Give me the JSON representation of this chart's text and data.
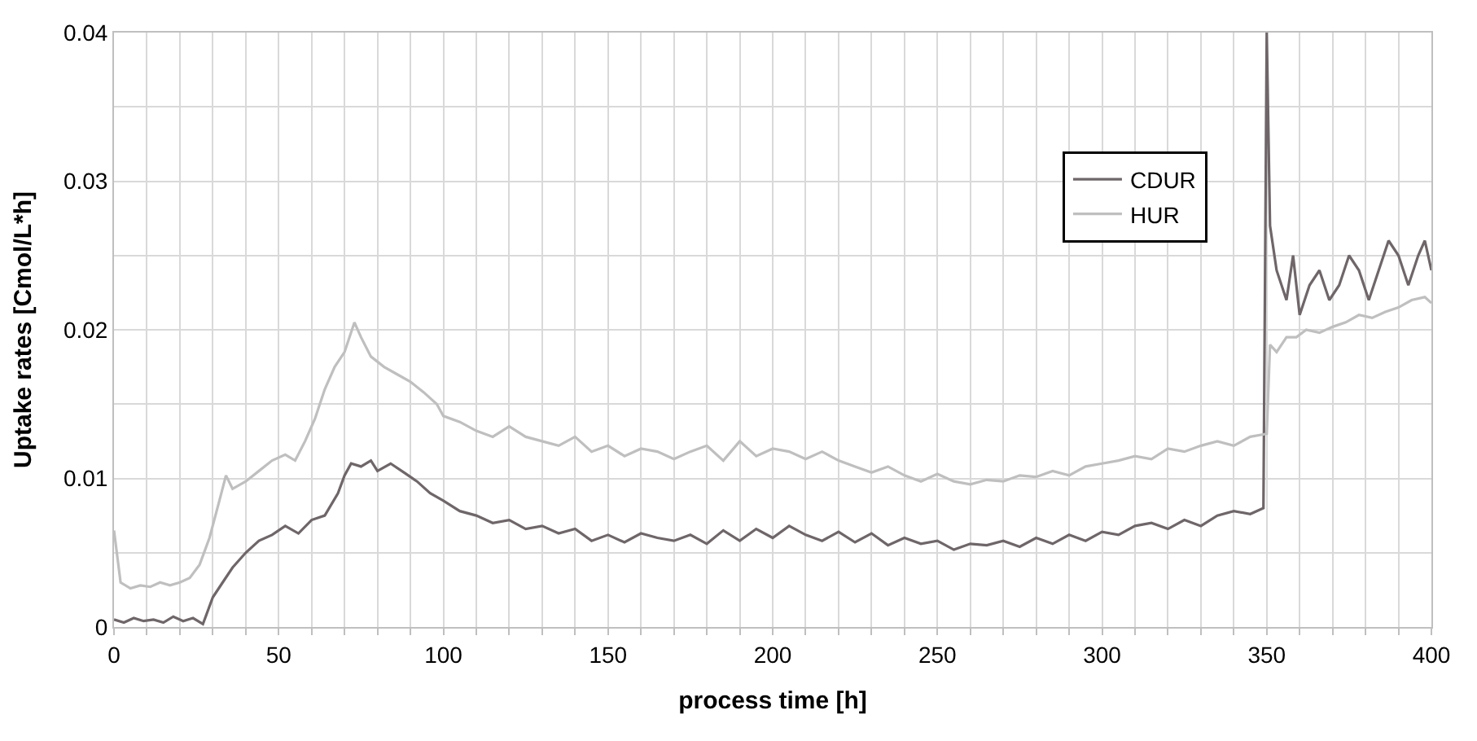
{
  "chart_data": {
    "type": "line",
    "xlabel": "process time [h]",
    "ylabel": "Uptake rates [Cmol/L*h]",
    "xlim": [
      0,
      400
    ],
    "ylim": [
      0,
      0.04
    ],
    "xticks": [
      0,
      {
        "value": 10,
        "label": null
      },
      {
        "value": 20,
        "label": null
      },
      {
        "value": 30,
        "label": null
      },
      {
        "value": 40,
        "label": null
      },
      50,
      {
        "value": 60,
        "label": null
      },
      {
        "value": 70,
        "label": null
      },
      {
        "value": 80,
        "label": null
      },
      {
        "value": 90,
        "label": null
      },
      100,
      {
        "value": 110,
        "label": null
      },
      {
        "value": 120,
        "label": null
      },
      {
        "value": 130,
        "label": null
      },
      {
        "value": 140,
        "label": null
      },
      150,
      {
        "value": 160,
        "label": null
      },
      {
        "value": 170,
        "label": null
      },
      {
        "value": 180,
        "label": null
      },
      {
        "value": 190,
        "label": null
      },
      200,
      {
        "value": 210,
        "label": null
      },
      {
        "value": 220,
        "label": null
      },
      {
        "value": 230,
        "label": null
      },
      {
        "value": 240,
        "label": null
      },
      250,
      {
        "value": 260,
        "label": null
      },
      {
        "value": 270,
        "label": null
      },
      {
        "value": 280,
        "label": null
      },
      {
        "value": 290,
        "label": null
      },
      300,
      {
        "value": 310,
        "label": null
      },
      {
        "value": 320,
        "label": null
      },
      {
        "value": 330,
        "label": null
      },
      {
        "value": 340,
        "label": null
      },
      350,
      {
        "value": 360,
        "label": null
      },
      {
        "value": 370,
        "label": null
      },
      {
        "value": 380,
        "label": null
      },
      {
        "value": 390,
        "label": null
      },
      400
    ],
    "yticks": [
      0,
      {
        "value": 0.005,
        "label": null
      },
      0.01,
      {
        "value": 0.015,
        "label": null
      },
      0.02,
      {
        "value": 0.025,
        "label": null
      },
      0.03,
      {
        "value": 0.035,
        "label": null
      },
      0.04
    ],
    "grid": true,
    "legend": "top right",
    "marker": "none",
    "line_style": "solid",
    "series": [
      {
        "name": "CDUR",
        "color": "#6e6668",
        "x": [
          0,
          3,
          6,
          9,
          12,
          15,
          18,
          21,
          24,
          27,
          30,
          33,
          36,
          40,
          44,
          48,
          52,
          56,
          60,
          64,
          68,
          70,
          72,
          75,
          78,
          80,
          84,
          88,
          92,
          96,
          100,
          105,
          110,
          115,
          120,
          125,
          130,
          135,
          140,
          145,
          150,
          155,
          160,
          165,
          170,
          175,
          180,
          185,
          190,
          195,
          200,
          205,
          210,
          215,
          220,
          225,
          230,
          235,
          240,
          245,
          250,
          255,
          260,
          265,
          270,
          275,
          280,
          285,
          290,
          295,
          300,
          305,
          310,
          315,
          320,
          325,
          330,
          335,
          340,
          345,
          349,
          350,
          351,
          353,
          356,
          358,
          360,
          363,
          366,
          369,
          372,
          375,
          378,
          381,
          384,
          387,
          390,
          393,
          396,
          398,
          400
        ],
        "values": [
          0.0005,
          0.0003,
          0.0006,
          0.0004,
          0.0005,
          0.0003,
          0.0007,
          0.0004,
          0.0006,
          0.0002,
          0.002,
          0.003,
          0.004,
          0.005,
          0.0058,
          0.0062,
          0.0068,
          0.0063,
          0.0072,
          0.0075,
          0.009,
          0.0102,
          0.011,
          0.0108,
          0.0112,
          0.0105,
          0.011,
          0.0104,
          0.0098,
          0.009,
          0.0085,
          0.0078,
          0.0075,
          0.007,
          0.0072,
          0.0066,
          0.0068,
          0.0063,
          0.0066,
          0.0058,
          0.0062,
          0.0057,
          0.0063,
          0.006,
          0.0058,
          0.0062,
          0.0056,
          0.0065,
          0.0058,
          0.0066,
          0.006,
          0.0068,
          0.0062,
          0.0058,
          0.0064,
          0.0057,
          0.0063,
          0.0055,
          0.006,
          0.0056,
          0.0058,
          0.0052,
          0.0056,
          0.0055,
          0.0058,
          0.0054,
          0.006,
          0.0056,
          0.0062,
          0.0058,
          0.0064,
          0.0062,
          0.0068,
          0.007,
          0.0066,
          0.0072,
          0.0068,
          0.0075,
          0.0078,
          0.0076,
          0.008,
          0.04,
          0.027,
          0.024,
          0.022,
          0.025,
          0.021,
          0.023,
          0.024,
          0.022,
          0.023,
          0.025,
          0.024,
          0.022,
          0.024,
          0.026,
          0.025,
          0.023,
          0.025,
          0.026,
          0.024
        ]
      },
      {
        "name": "HUR",
        "color": "#bfbfbf",
        "x": [
          0,
          2,
          5,
          8,
          11,
          14,
          17,
          20,
          23,
          26,
          29,
          32,
          34,
          36,
          40,
          44,
          48,
          52,
          55,
          58,
          61,
          64,
          67,
          70,
          73,
          75,
          78,
          82,
          86,
          90,
          94,
          98,
          100,
          105,
          110,
          115,
          120,
          125,
          130,
          135,
          140,
          145,
          150,
          155,
          160,
          165,
          170,
          175,
          180,
          185,
          190,
          195,
          200,
          205,
          210,
          215,
          220,
          225,
          230,
          235,
          240,
          245,
          250,
          255,
          260,
          265,
          270,
          275,
          280,
          285,
          290,
          295,
          300,
          305,
          310,
          315,
          320,
          325,
          330,
          335,
          340,
          345,
          350,
          351,
          353,
          356,
          359,
          362,
          366,
          370,
          374,
          378,
          382,
          386,
          390,
          394,
          398,
          400
        ],
        "values": [
          0.0065,
          0.003,
          0.0026,
          0.0028,
          0.0027,
          0.003,
          0.0028,
          0.003,
          0.0033,
          0.0042,
          0.006,
          0.0085,
          0.0102,
          0.0093,
          0.0098,
          0.0105,
          0.0112,
          0.0116,
          0.0112,
          0.0125,
          0.014,
          0.016,
          0.0175,
          0.0185,
          0.0205,
          0.0195,
          0.0182,
          0.0175,
          0.017,
          0.0165,
          0.0158,
          0.015,
          0.0142,
          0.0138,
          0.0132,
          0.0128,
          0.0135,
          0.0128,
          0.0125,
          0.0122,
          0.0128,
          0.0118,
          0.0122,
          0.0115,
          0.012,
          0.0118,
          0.0113,
          0.0118,
          0.0122,
          0.0112,
          0.0125,
          0.0115,
          0.012,
          0.0118,
          0.0113,
          0.0118,
          0.0112,
          0.0108,
          0.0104,
          0.0108,
          0.0102,
          0.0098,
          0.0103,
          0.0098,
          0.0096,
          0.0099,
          0.0098,
          0.0102,
          0.0101,
          0.0105,
          0.0102,
          0.0108,
          0.011,
          0.0112,
          0.0115,
          0.0113,
          0.012,
          0.0118,
          0.0122,
          0.0125,
          0.0122,
          0.0128,
          0.013,
          0.019,
          0.0185,
          0.0195,
          0.0195,
          0.02,
          0.0198,
          0.0202,
          0.0205,
          0.021,
          0.0208,
          0.0212,
          0.0215,
          0.022,
          0.0222,
          0.0218
        ]
      }
    ]
  }
}
